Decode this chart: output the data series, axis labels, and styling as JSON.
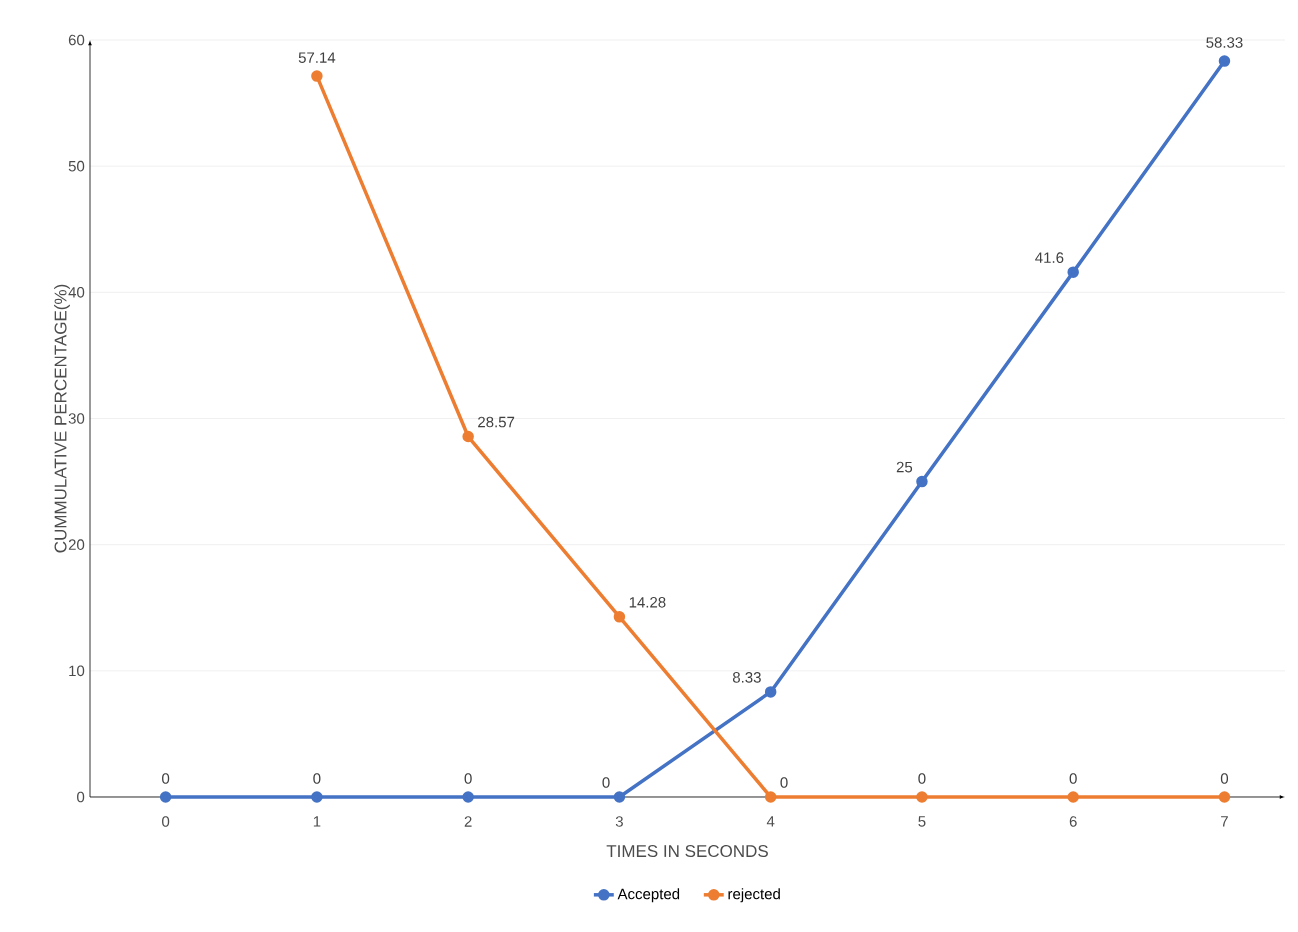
{
  "chart_data": {
    "type": "line",
    "xlabel": "TIMES IN SECONDS",
    "ylabel": "CUMMULATIVE PERCENTAGE(%)",
    "categories": [
      "0",
      "1",
      "2",
      "3",
      "4",
      "5",
      "6",
      "7"
    ],
    "series": [
      {
        "name": "Accepted",
        "color": "#4472c4",
        "values": [
          0,
          0,
          0,
          0,
          8.33,
          25,
          41.6,
          58.33
        ],
        "value_labels": [
          "0",
          "0",
          "0",
          "0",
          "8.33",
          "25",
          "41.6",
          "58.33"
        ]
      },
      {
        "name": "rejected",
        "color": "#ed7d31",
        "values": [
          null,
          57.14,
          28.57,
          14.28,
          0,
          0,
          0,
          0
        ],
        "value_labels": [
          null,
          "57.14",
          "28.57",
          "14.28",
          "0",
          "0",
          "0",
          "0"
        ]
      }
    ],
    "ylim": [
      0,
      60
    ],
    "yticks": [
      0,
      10,
      20,
      30,
      40,
      50,
      60
    ],
    "grid": "y",
    "legend": "bottom",
    "marker": "circle"
  }
}
